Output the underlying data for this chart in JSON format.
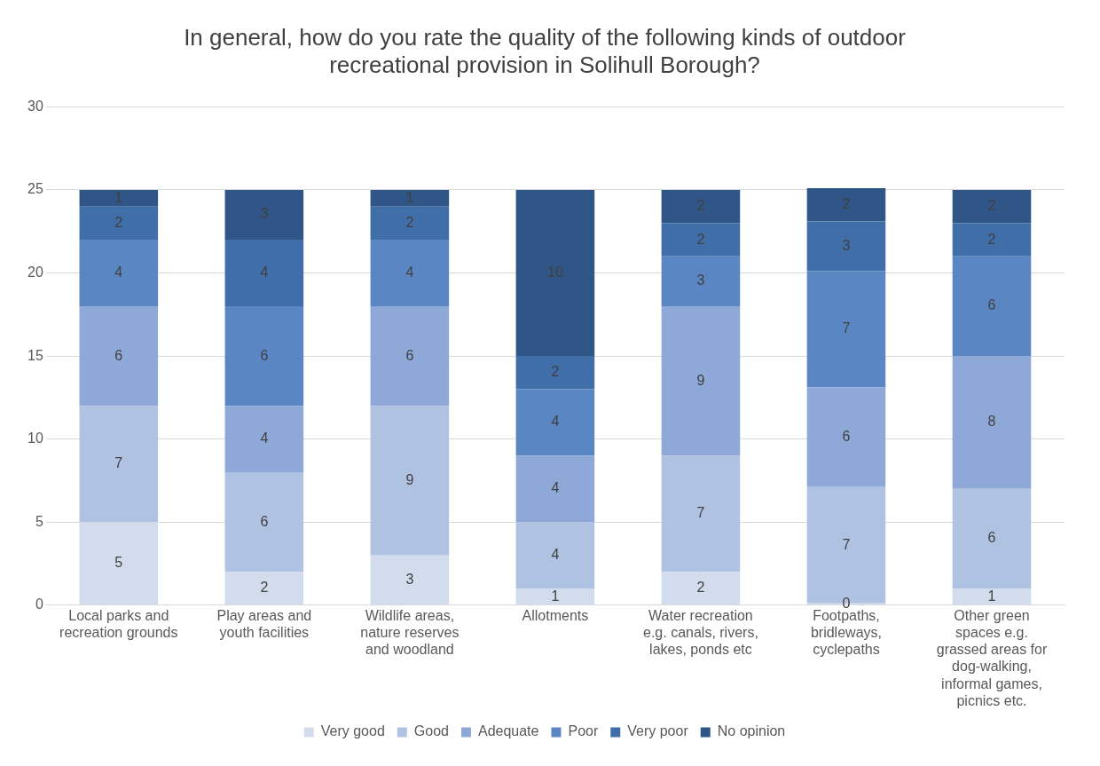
{
  "chart_data": {
    "type": "bar",
    "stacked": true,
    "title": "In general, how do you rate the quality of the following kinds of outdoor recreational provision in Solihull Borough?",
    "categories": [
      "Local parks and recreation grounds",
      "Play areas and youth facilities",
      "Wildlife areas, nature reserves and woodland",
      "Allotments",
      "Water recreation e.g. canals, rivers, lakes, ponds etc",
      "Footpaths, bridleways, cyclepaths",
      "Other green spaces e.g. grassed areas for dog-walking, informal games, picnics etc."
    ],
    "series": [
      {
        "name": "Very good",
        "color": "#d3dcec",
        "values": [
          5,
          2,
          3,
          1,
          2,
          0,
          1
        ]
      },
      {
        "name": "Good",
        "color": "#b0c2e2",
        "values": [
          7,
          6,
          9,
          4,
          7,
          7,
          6
        ]
      },
      {
        "name": "Adequate",
        "color": "#8ea8d7",
        "values": [
          6,
          4,
          6,
          4,
          9,
          6,
          8
        ]
      },
      {
        "name": "Poor",
        "color": "#5a86c4",
        "values": [
          4,
          6,
          4,
          4,
          3,
          7,
          6
        ]
      },
      {
        "name": "Very poor",
        "color": "#406ea9",
        "values": [
          2,
          4,
          2,
          2,
          2,
          3,
          2
        ]
      },
      {
        "name": "No opinion",
        "color": "#2f5687",
        "values": [
          1,
          3,
          1,
          10,
          2,
          2,
          2
        ]
      }
    ],
    "ylim": [
      0,
      30
    ],
    "yticks": [
      0,
      5,
      10,
      15,
      20,
      25,
      30
    ],
    "grid": "y",
    "legend": "bottom",
    "data_labels": true
  }
}
